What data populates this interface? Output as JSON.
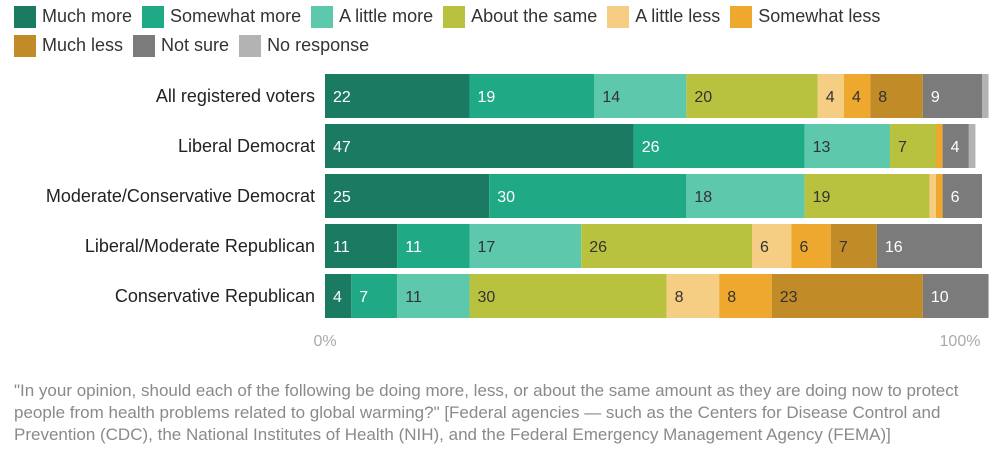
{
  "chart_data": {
    "type": "bar",
    "orientation": "horizontal-stacked",
    "categories": [
      "All registered voters",
      "Liberal Democrat",
      "Moderate/Conservative Democrat",
      "Liberal/Moderate Republican",
      "Conservative Republican"
    ],
    "series": [
      {
        "name": "Much more",
        "color": "#1b7a62",
        "values": [
          22,
          47,
          25,
          11,
          4
        ]
      },
      {
        "name": "Somewhat more",
        "color": "#20a985",
        "values": [
          19,
          26,
          30,
          11,
          7
        ]
      },
      {
        "name": "A little more",
        "color": "#5ec8ad",
        "values": [
          14,
          13,
          18,
          17,
          11
        ]
      },
      {
        "name": "About the same",
        "color": "#b9c23f",
        "values": [
          20,
          7,
          19,
          26,
          30
        ]
      },
      {
        "name": "A little less",
        "color": "#f5cd83",
        "values": [
          4,
          0,
          1,
          6,
          8
        ]
      },
      {
        "name": "Somewhat less",
        "color": "#eea82e",
        "values": [
          4,
          1,
          1,
          6,
          8
        ]
      },
      {
        "name": "Much less",
        "color": "#c18b28",
        "values": [
          8,
          0,
          0,
          7,
          23
        ]
      },
      {
        "name": "Not sure",
        "color": "#7b7b7b",
        "values": [
          9,
          4,
          6,
          16,
          10
        ]
      },
      {
        "name": "No response",
        "color": "#b3b3b3",
        "values": [
          1,
          1,
          0,
          0,
          0
        ]
      }
    ],
    "segment_labels": [
      [
        "22",
        "19",
        "14",
        "20",
        "4",
        "4",
        "8",
        "9",
        ""
      ],
      [
        "47",
        "26",
        "13",
        "7",
        "",
        "",
        "",
        "4",
        ""
      ],
      [
        "25",
        "30",
        "18",
        "19",
        "",
        "",
        "",
        "6",
        ""
      ],
      [
        "11",
        "11",
        "17",
        "26",
        "6",
        "6",
        "7",
        "16",
        ""
      ],
      [
        "4",
        "7",
        "11",
        "30",
        "8",
        "8",
        "23",
        "10",
        ""
      ]
    ],
    "xlim": [
      0,
      100
    ],
    "x_ticks": [
      "0%",
      "100%"
    ],
    "legend_position": "top-left"
  },
  "caption": "\"In your opinion, should each of the following be doing more, less, or about the same amount as they are doing now to protect people from health problems related to global warming?\" [Federal agencies — such as the Centers for Disease Control and Prevention (CDC), the National Institutes of Health (NIH), and the Federal Emergency Management Agency (FEMA)]"
}
